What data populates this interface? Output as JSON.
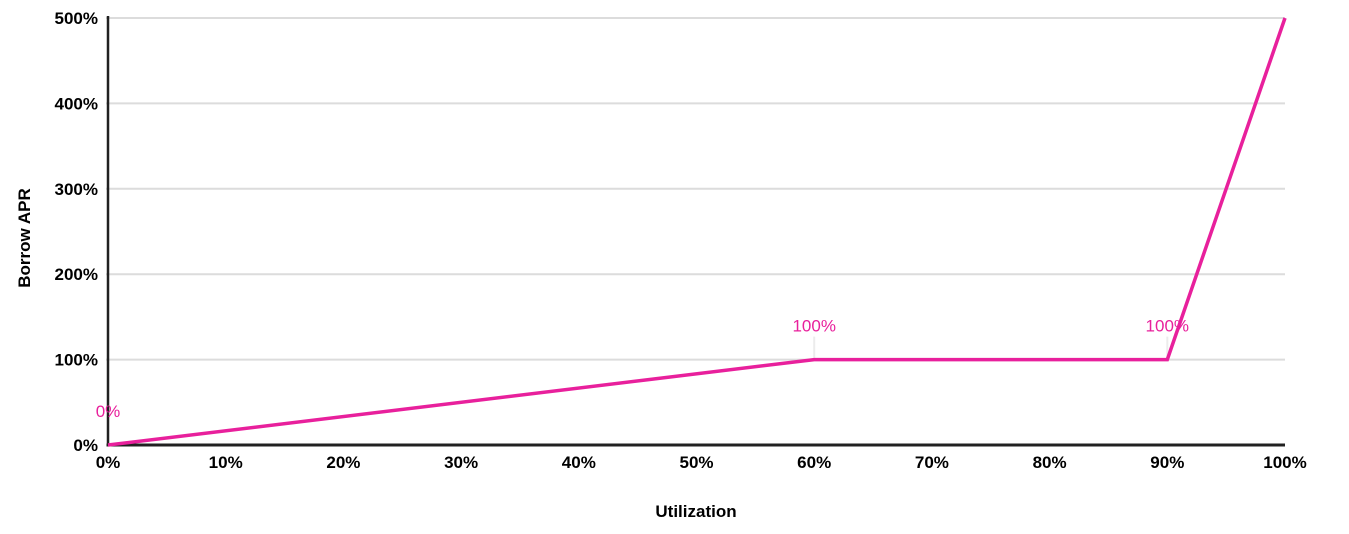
{
  "chart_data": {
    "type": "line",
    "title": "",
    "xlabel": "Utilization",
    "ylabel": "Borrow APR",
    "xlim": [
      0,
      100
    ],
    "ylim": [
      0,
      500
    ],
    "grid": "horizontal",
    "legend_position": "none",
    "x_ticks": [
      {
        "v": 0,
        "label": "0%"
      },
      {
        "v": 10,
        "label": "10%"
      },
      {
        "v": 20,
        "label": "20%"
      },
      {
        "v": 30,
        "label": "30%"
      },
      {
        "v": 40,
        "label": "40%"
      },
      {
        "v": 50,
        "label": "50%"
      },
      {
        "v": 60,
        "label": "60%"
      },
      {
        "v": 70,
        "label": "70%"
      },
      {
        "v": 80,
        "label": "80%"
      },
      {
        "v": 90,
        "label": "90%"
      },
      {
        "v": 100,
        "label": "100%"
      }
    ],
    "y_ticks": [
      {
        "v": 0,
        "label": "0%"
      },
      {
        "v": 100,
        "label": "100%"
      },
      {
        "v": 200,
        "label": "200%"
      },
      {
        "v": 300,
        "label": "300%"
      },
      {
        "v": 400,
        "label": "400%"
      },
      {
        "v": 500,
        "label": "500%"
      }
    ],
    "series": [
      {
        "name": "Borrow APR",
        "color": "#E8209C",
        "points": [
          {
            "x": 0,
            "y": 0
          },
          {
            "x": 60,
            "y": 100
          },
          {
            "x": 90,
            "y": 100
          },
          {
            "x": 100,
            "y": 500
          }
        ]
      }
    ],
    "point_labels": [
      {
        "x": 0,
        "y": 0,
        "text": "0%",
        "leader": false
      },
      {
        "x": 60,
        "y": 100,
        "text": "100%",
        "leader": true
      },
      {
        "x": 90,
        "y": 100,
        "text": "100%",
        "leader": true
      }
    ]
  },
  "colors": {
    "series": "#E8209C",
    "gridline": "#DCDCDC",
    "leader": "#ECECEC",
    "axis": "#212121",
    "text": "#000000",
    "background": "#FFFFFF"
  }
}
